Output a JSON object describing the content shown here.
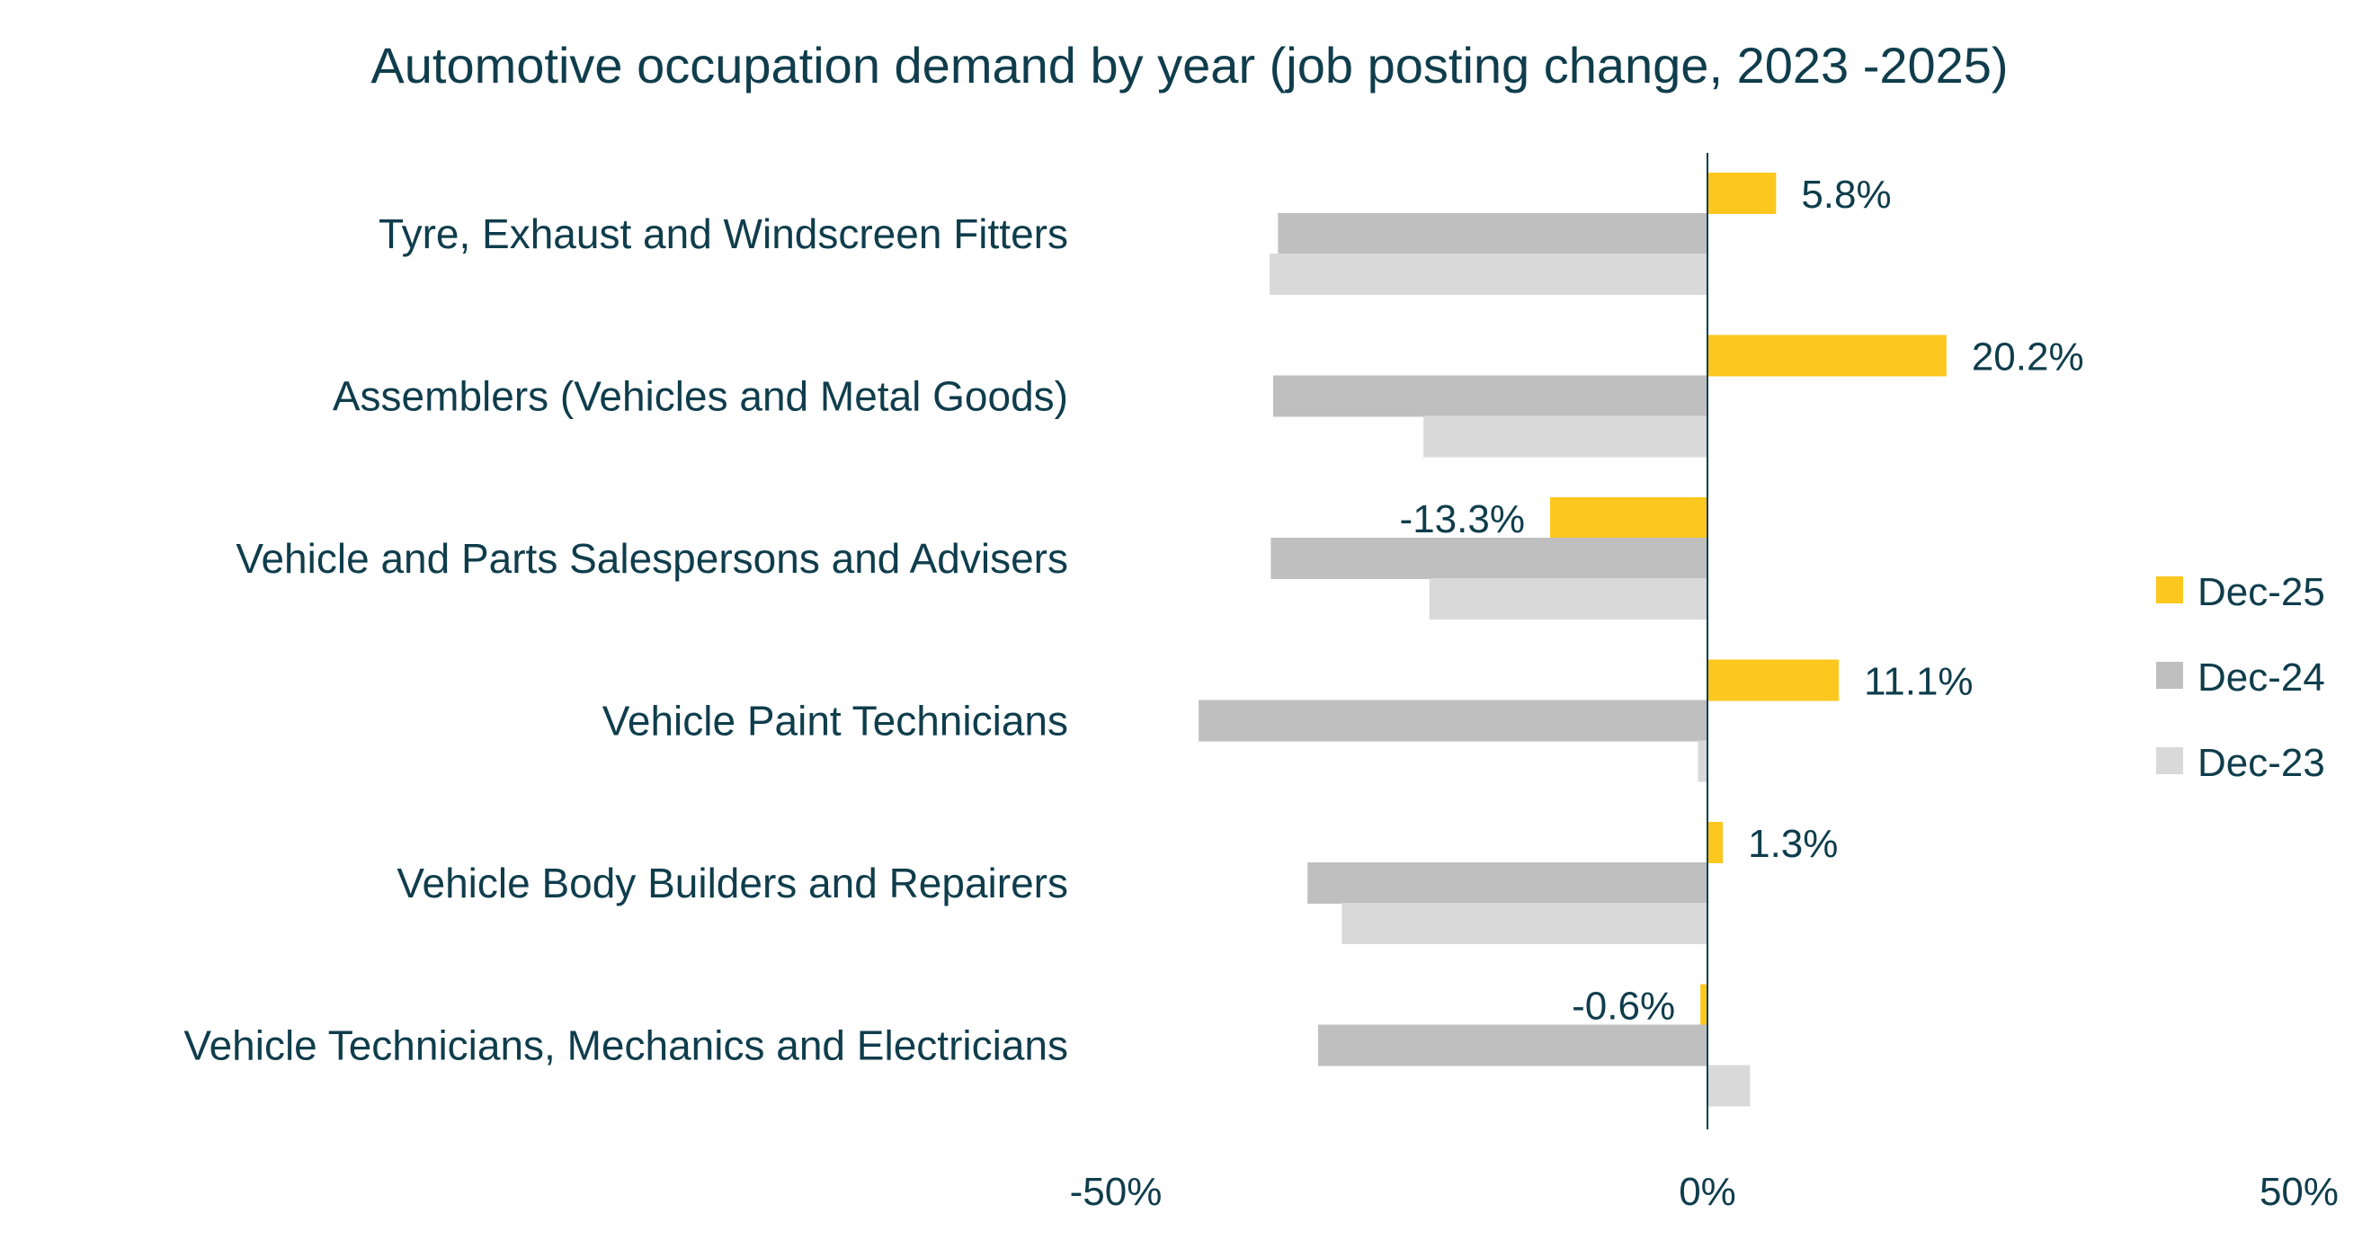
{
  "chart_data": {
    "type": "bar",
    "orientation": "horizontal",
    "title": "Automotive occupation demand by year (job posting change, 2023 -2025)",
    "xlabel": "",
    "ylabel": "",
    "xlim": [
      -50,
      50
    ],
    "x_ticks": [
      "-50%",
      "0%",
      "50%"
    ],
    "x_tick_values": [
      -50,
      0,
      50
    ],
    "grid": false,
    "legend_position": "right",
    "categories": [
      "Tyre, Exhaust and Windscreen Fitters",
      "Assemblers (Vehicles and Metal Goods)",
      "Vehicle and Parts Salespersons and Advisers",
      "Vehicle Paint Technicians",
      "Vehicle Body Builders and Repairers",
      "Vehicle Technicians, Mechanics and Electricians"
    ],
    "series": [
      {
        "name": "Dec-25",
        "color": "#fcc71e",
        "values": [
          5.8,
          20.2,
          -13.3,
          11.1,
          1.3,
          -0.6
        ],
        "data_labels": [
          "5.8%",
          "20.2%",
          "-13.3%",
          "11.1%",
          "1.3%",
          "-0.6%"
        ]
      },
      {
        "name": "Dec-24",
        "color": "#bfbfbf",
        "values": [
          -36.3,
          -36.7,
          -36.9,
          -43.0,
          -33.8,
          -32.9
        ]
      },
      {
        "name": "Dec-23",
        "color": "#d9d9d9",
        "values": [
          -37.0,
          -24.0,
          -23.5,
          -0.8,
          -30.9,
          3.6
        ]
      }
    ],
    "axis_color": "#0f3d4c"
  }
}
